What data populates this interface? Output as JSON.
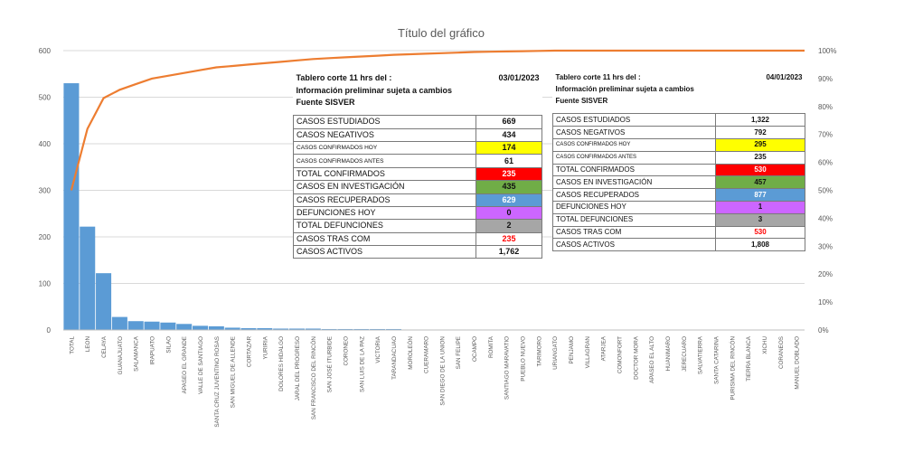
{
  "chart_data": {
    "type": "bar",
    "title": "Título del gráfico",
    "categories": [
      "TOTAL",
      "LEON",
      "CELAYA",
      "GUANAJUATO",
      "SALAMANCA",
      "IRAPUATO",
      "SILAO",
      "APASEO EL GRANDE",
      "VALLE DE SANTIAGO",
      "SANTA CRUZ JUVENTINO ROSAS",
      "SAN MIGUEL DE ALLENDE",
      "CORTAZAR",
      "YURIRIA",
      "DOLORES HIDALGO",
      "JARAL DEL PROGRESO",
      "SAN FRANCISCO DEL RINCÓN",
      "SAN JOSÉ ITURBIDE",
      "CORONEO",
      "SAN LUIS DE LA PAZ",
      "VICTORIA",
      "TARANDACUAO",
      "MOROLEÓN",
      "CUERAMARO",
      "SAN DIEGO DE LA UNION",
      "SAN FELIPE",
      "OCAMPO",
      "ROMITA",
      "SANTIAGO MARAVATIO",
      "PUEBLO NUEVO",
      "TARIMORO",
      "URIANGATO",
      "PENJAMO",
      "VILLAGRAN",
      "ATARJEA",
      "COMONFORT",
      "DOCTOR MORA",
      "APASEO EL ALTO",
      "HUANIMARO",
      "JERECUARO",
      "SALVATIERRA",
      "SANTA CATARINA",
      "PURISIMA DEL RINCÓN",
      "TIERRA BLANCA",
      "XICHU",
      "CORANEOS",
      "MANUEL DOBLADO"
    ],
    "series": [
      {
        "values": [
          530,
          222,
          122,
          28,
          19,
          18,
          16,
          13,
          9,
          8,
          5,
          4,
          4,
          3,
          3,
          3,
          2,
          2,
          2,
          2,
          2,
          1,
          1,
          1,
          1,
          1,
          1,
          1,
          1,
          1,
          0,
          0,
          0,
          0,
          0,
          0,
          0,
          0,
          0,
          0,
          0,
          0,
          0,
          0,
          0,
          0
        ]
      },
      {
        "values": [
          50,
          72,
          83,
          86,
          88,
          90,
          91,
          92,
          93,
          94,
          94.5,
          95,
          95.5,
          96,
          96.5,
          97,
          97.3,
          97.6,
          97.9,
          98.2,
          98.5,
          98.7,
          98.9,
          99.1,
          99.3,
          99.5,
          99.6,
          99.7,
          99.8,
          99.9,
          100,
          100,
          100,
          100,
          100,
          100,
          100,
          100,
          100,
          100,
          100,
          100,
          100,
          100,
          100,
          100
        ]
      }
    ],
    "ylim": [
      0,
      600
    ],
    "yticks": [
      "0",
      "100",
      "200",
      "300",
      "400",
      "500",
      "600"
    ],
    "y2lim": [
      0,
      100
    ],
    "y2ticks": [
      "0%",
      "10%",
      "20%",
      "30%",
      "40%",
      "50%",
      "60%",
      "70%",
      "80%",
      "90%",
      "100%"
    ],
    "grid": true,
    "colors": {
      "bar": "#5b9bd5",
      "line": "#ed7d31",
      "grid": "#d9d9d9",
      "axis_text": "#595959"
    }
  },
  "table_left": {
    "header": [
      {
        "label": "Tablero corte 11 hrs del :",
        "date": "03/01/2023"
      },
      {
        "label": "Información preliminar sujeta a cambios"
      },
      {
        "label": "Fuente SISVER"
      }
    ],
    "rows": [
      {
        "label": "CASOS ESTUDIADOS",
        "value": "669",
        "bg": "#ffffff",
        "color": "#111111"
      },
      {
        "label": "CASOS NEGATIVOS",
        "value": "434",
        "bg": "#ffffff",
        "color": "#111111"
      },
      {
        "label": "CASOS CONFIRMADOS HOY",
        "value": "174",
        "bg": "#ffff00",
        "color": "#111111",
        "small": true
      },
      {
        "label": "CASOS CONFIRMADOS ANTES",
        "value": "61",
        "bg": "#ffffff",
        "color": "#111111",
        "small": true
      },
      {
        "label": "TOTAL CONFIRMADOS",
        "value": "235",
        "bg": "#ff0000",
        "color": "#ffffff"
      },
      {
        "label": "CASOS EN INVESTIGACIÓN",
        "value": "435",
        "bg": "#70ad47",
        "color": "#111111"
      },
      {
        "label": "CASOS RECUPERADOS",
        "value": "629",
        "bg": "#5b9bd5",
        "color": "#ffffff"
      },
      {
        "label": "DEFUNCIONES HOY",
        "value": "0",
        "bg": "#cc66ff",
        "color": "#111111"
      },
      {
        "label": "TOTAL DEFUNCIONES",
        "value": "2",
        "bg": "#a6a6a6",
        "color": "#111111"
      },
      {
        "label": "CASOS TRAS COM",
        "value": "235",
        "bg": "#ffffff",
        "color": "#ff0000"
      },
      {
        "label": "CASOS ACTIVOS",
        "value": "1,762",
        "bg": "#ffffff",
        "color": "#111111"
      }
    ]
  },
  "table_right": {
    "header": [
      {
        "label": "Tablero corte 11 hrs del :",
        "date": "04/01/2023"
      },
      {
        "label": "Información preliminar sujeta a cambios"
      },
      {
        "label": "Fuente SISVER"
      }
    ],
    "rows": [
      {
        "label": "CASOS ESTUDIADOS",
        "value": "1,322",
        "bg": "#ffffff",
        "color": "#111111"
      },
      {
        "label": "CASOS NEGATIVOS",
        "value": "792",
        "bg": "#ffffff",
        "color": "#111111"
      },
      {
        "label": "CASOS CONFIRMADOS HOY",
        "value": "295",
        "bg": "#ffff00",
        "color": "#111111",
        "small": true
      },
      {
        "label": "CASOS CONFIRMADOS ANTES",
        "value": "235",
        "bg": "#ffffff",
        "color": "#111111",
        "small": true
      },
      {
        "label": "TOTAL CONFIRMADOS",
        "value": "530",
        "bg": "#ff0000",
        "color": "#ffffff"
      },
      {
        "label": "CASOS EN INVESTIGACIÓN",
        "value": "457",
        "bg": "#70ad47",
        "color": "#111111"
      },
      {
        "label": "CASOS RECUPERADOS",
        "value": "877",
        "bg": "#5b9bd5",
        "color": "#ffffff"
      },
      {
        "label": "DEFUNCIONES HOY",
        "value": "1",
        "bg": "#cc66ff",
        "color": "#111111"
      },
      {
        "label": "TOTAL DEFUNCIONES",
        "value": "3",
        "bg": "#a6a6a6",
        "color": "#111111"
      },
      {
        "label": "CASOS TRAS COM",
        "value": "530",
        "bg": "#ffffff",
        "color": "#ff0000"
      },
      {
        "label": "CASOS ACTIVOS",
        "value": "1,808",
        "bg": "#ffffff",
        "color": "#111111"
      }
    ]
  }
}
